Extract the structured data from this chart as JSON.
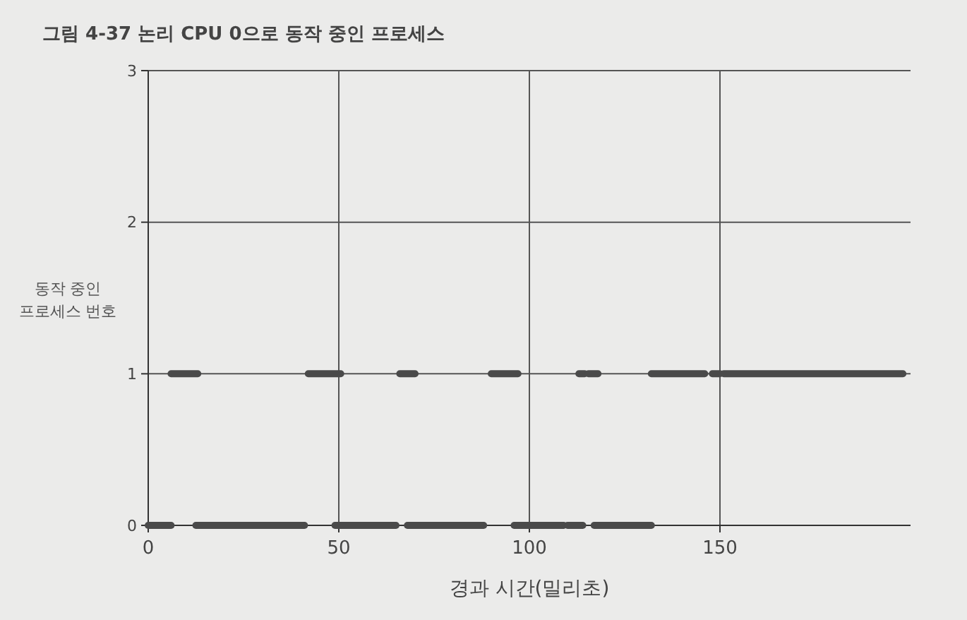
{
  "chart_data": {
    "type": "line",
    "title": "그림 4-37 논리 CPU 0으로 동작 중인 프로세스",
    "xlabel": "경과 시간(밀리초)",
    "ylabel": "동작 중인 프로세스 번호",
    "xlim": [
      0,
      200
    ],
    "xticks": [
      0,
      50,
      100,
      150
    ],
    "ylim": [
      0,
      3
    ],
    "yticks": [
      0,
      1,
      2,
      3
    ],
    "grid": true,
    "marker": "none",
    "line_style": "solid",
    "series": [
      {
        "color": "#4a4a4a",
        "x": [
          0,
          6
        ],
        "values": [
          0,
          0
        ]
      },
      {
        "color": "#4a4a4a",
        "x": [
          12.5,
          41
        ],
        "values": [
          0,
          0
        ]
      },
      {
        "color": "#4a4a4a",
        "x": [
          49,
          65
        ],
        "values": [
          0,
          0
        ]
      },
      {
        "color": "#4a4a4a",
        "x": [
          68,
          88
        ],
        "values": [
          0,
          0
        ]
      },
      {
        "color": "#4a4a4a",
        "x": [
          96,
          109
        ],
        "values": [
          0,
          0
        ]
      },
      {
        "color": "#4a4a4a",
        "x": [
          110,
          114
        ],
        "values": [
          0,
          0
        ]
      },
      {
        "color": "#4a4a4a",
        "x": [
          117,
          132
        ],
        "values": [
          0,
          0
        ]
      },
      {
        "color": "#4a4a4a",
        "x": [
          6,
          13
        ],
        "values": [
          1,
          1
        ]
      },
      {
        "color": "#4a4a4a",
        "x": [
          42,
          50.5
        ],
        "values": [
          1,
          1
        ]
      },
      {
        "color": "#4a4a4a",
        "x": [
          66,
          70
        ],
        "values": [
          1,
          1
        ]
      },
      {
        "color": "#4a4a4a",
        "x": [
          90,
          97
        ],
        "values": [
          1,
          1
        ]
      },
      {
        "color": "#4a4a4a",
        "x": [
          113,
          114.5
        ],
        "values": [
          1,
          1
        ]
      },
      {
        "color": "#4a4a4a",
        "x": [
          115.5,
          118
        ],
        "values": [
          1,
          1
        ]
      },
      {
        "color": "#4a4a4a",
        "x": [
          132,
          146
        ],
        "values": [
          1,
          1
        ]
      },
      {
        "color": "#4a4a4a",
        "x": [
          148,
          150
        ],
        "values": [
          1,
          1
        ]
      },
      {
        "color": "#4a4a4a",
        "x": [
          151,
          198
        ],
        "values": [
          1,
          1
        ]
      }
    ]
  }
}
